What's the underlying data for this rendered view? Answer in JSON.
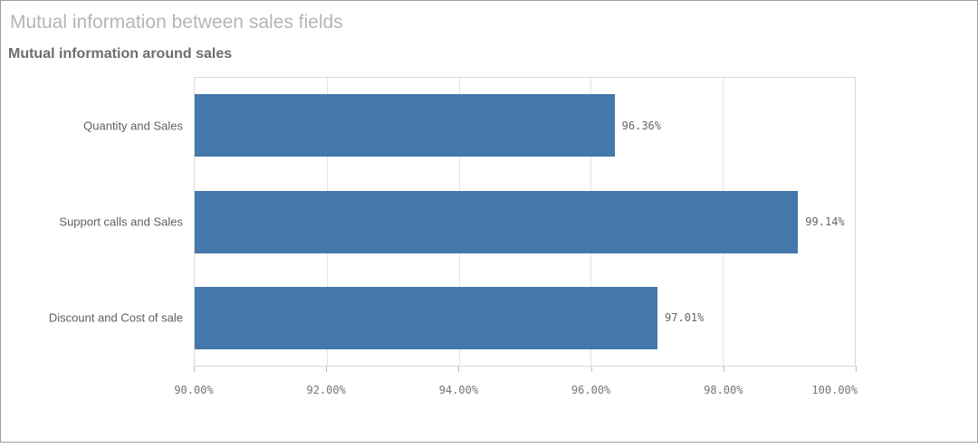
{
  "chart": {
    "title": "Mutual information between sales fields",
    "subtitle": "Mutual information around sales"
  },
  "chart_data": {
    "type": "bar",
    "orientation": "horizontal",
    "title": "Mutual information around sales",
    "xlabel": "",
    "ylabel": "",
    "categories": [
      "Quantity and Sales",
      "Support calls and Sales",
      "Discount and Cost of sale"
    ],
    "values": [
      96.36,
      99.14,
      97.01
    ],
    "value_labels": [
      "96.36%",
      "99.14%",
      "97.01%"
    ],
    "xlim": [
      90,
      100
    ],
    "xticks": [
      90,
      92,
      94,
      96,
      98,
      100
    ],
    "xtick_labels": [
      "90.00%",
      "92.00%",
      "94.00%",
      "96.00%",
      "98.00%",
      "100.00%"
    ],
    "grid": true,
    "legend": false,
    "bar_color": "#4477aa"
  },
  "colors": {
    "bar": "#4477aa",
    "frame_border": "#9e9e9e",
    "plot_border": "#d8d8d8",
    "grid": "#e4e4e4",
    "tick": "#bdbdbd",
    "title_text": "#b5b5b5",
    "subtitle_text": "#6d6d6d",
    "axis_text": "#757575",
    "cat_text": "#5f5f5f",
    "label_text": "#666666"
  }
}
